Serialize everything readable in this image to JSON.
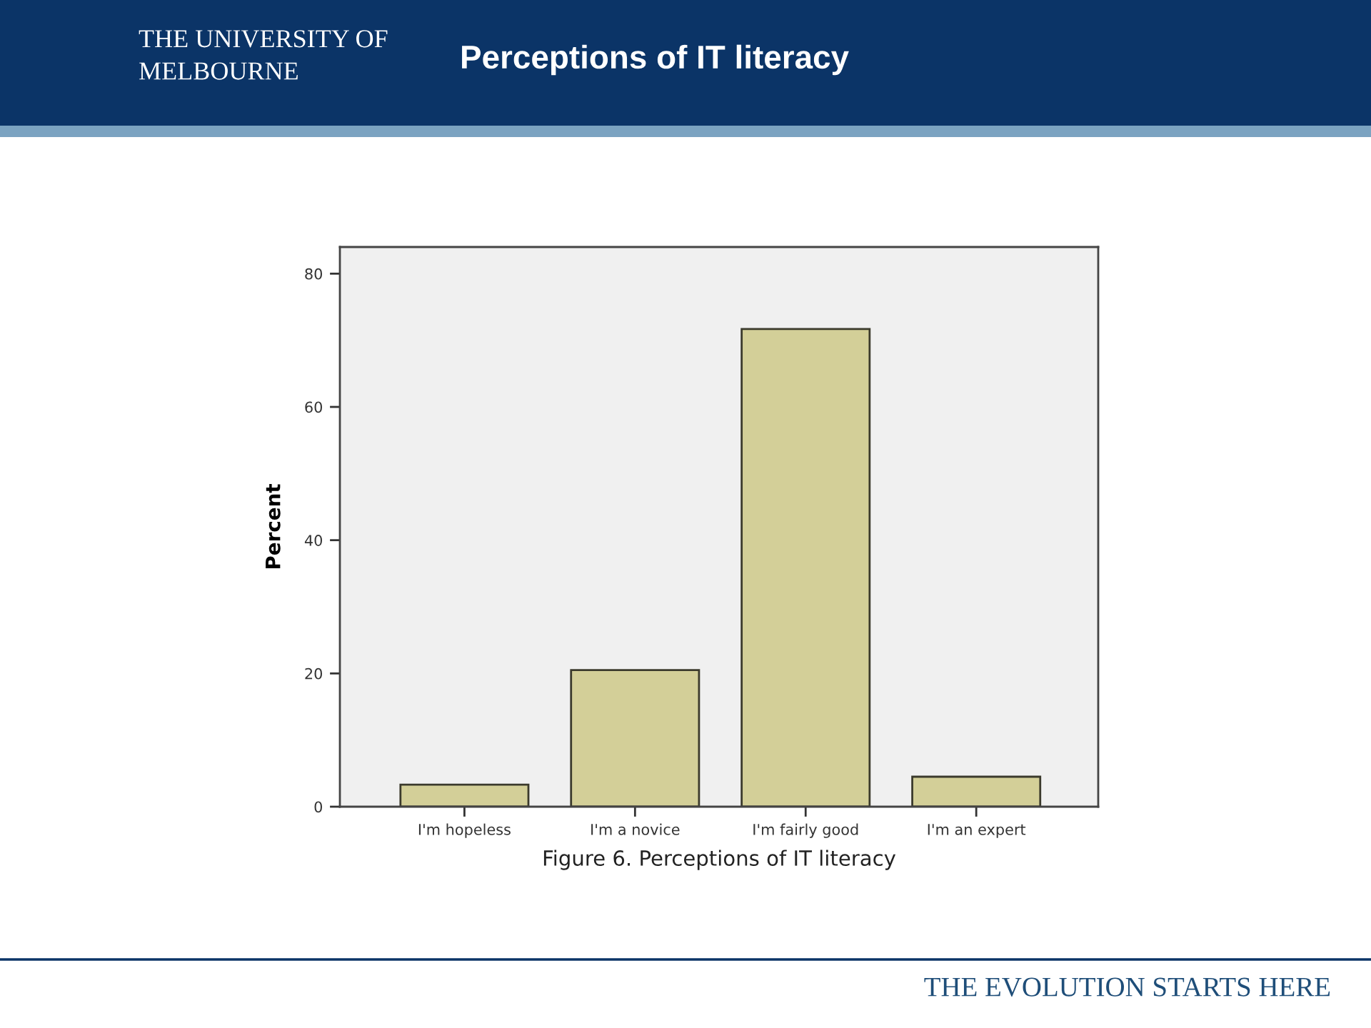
{
  "chart_data": {
    "type": "bar",
    "title": "Perceptions of IT literacy",
    "xlabel": "Figure 6. Perceptions of IT literacy",
    "ylabel": "Percent",
    "categories": [
      "I'm hopeless",
      "I'm a novice",
      "I'm fairly good",
      "I'm an expert"
    ],
    "values": [
      3.3,
      20.5,
      71.7,
      4.5
    ],
    "color": "#d3cf98",
    "ylim": [
      0,
      84
    ],
    "yticks": [
      0,
      20,
      40,
      60,
      80
    ],
    "annotations": [
      "THE UNIVERSITY OF\nMELBOURNE",
      "THE EVOLUTION STARTS HERE"
    ]
  }
}
